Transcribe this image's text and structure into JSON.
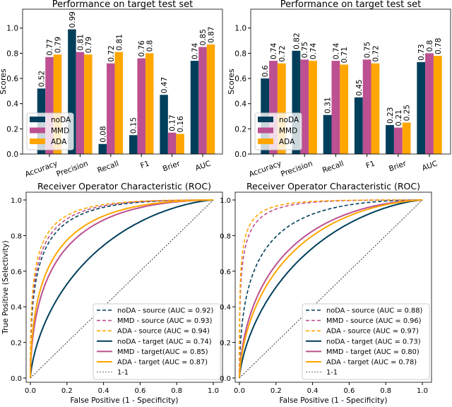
{
  "colors": {
    "noDA": "#003f5c",
    "MMD": "#bc5090",
    "ADA": "#ffa600"
  },
  "chart_data": [
    {
      "type": "bar",
      "title": "Performance on target test set",
      "ylabel": "Scores",
      "xlabel": "",
      "ylim": [
        0,
        1.15
      ],
      "yticks": [
        "0.0",
        "0.2",
        "0.4",
        "0.6",
        "0.8",
        "1.0"
      ],
      "categories": [
        "Accuracy",
        "Precision",
        "Recall",
        "F1",
        "Brier",
        "AUC"
      ],
      "legend": "lower-left",
      "series": [
        {
          "name": "noDA",
          "values": [
            0.52,
            0.99,
            0.08,
            0.15,
            0.47,
            0.74
          ],
          "labels": [
            "0.52",
            "0.99",
            "0.08",
            "0.15",
            "0.47",
            "0.74"
          ]
        },
        {
          "name": "MMD",
          "values": [
            0.77,
            0.81,
            0.72,
            0.76,
            0.17,
            0.85
          ],
          "labels": [
            "0.77",
            "0.81",
            "0.72",
            "0.76",
            "0.17",
            "0.85"
          ]
        },
        {
          "name": "ADA",
          "values": [
            0.79,
            0.79,
            0.81,
            0.8,
            0.16,
            0.87
          ],
          "labels": [
            "0.79",
            "0.79",
            "0.81",
            "0.8",
            "0.16",
            "0.87"
          ]
        }
      ]
    },
    {
      "type": "bar",
      "title": "Performance on target test set",
      "ylabel": "Scores",
      "xlabel": "",
      "ylim": [
        0,
        1.15
      ],
      "yticks": [
        "0.0",
        "0.2",
        "0.4",
        "0.6",
        "0.8",
        "1.0"
      ],
      "categories": [
        "Accuracy",
        "Precision",
        "Recall",
        "F1",
        "Brier",
        "AUC"
      ],
      "legend": "lower-left",
      "series": [
        {
          "name": "noDA",
          "values": [
            0.6,
            0.82,
            0.31,
            0.45,
            0.23,
            0.73
          ],
          "labels": [
            "0.6",
            "0.82",
            "0.31",
            "0.45",
            "0.23",
            "0.73"
          ]
        },
        {
          "name": "MMD",
          "values": [
            0.74,
            0.75,
            0.74,
            0.75,
            0.21,
            0.8
          ],
          "labels": [
            "0.74",
            "0.75",
            "0.74",
            "0.75",
            "0.21",
            "0.8"
          ]
        },
        {
          "name": "ADA",
          "values": [
            0.72,
            0.74,
            0.71,
            0.72,
            0.25,
            0.78
          ],
          "labels": [
            "0.72",
            "0.74",
            "0.71",
            "0.72",
            "0.25",
            "0.78"
          ]
        }
      ]
    },
    {
      "type": "line",
      "title": "Receiver Operator Characteristic (ROC)",
      "xlabel": "False Positive (1 - Specificity)",
      "ylabel": "True Positive (Selectivity)",
      "xlim": [
        0,
        1
      ],
      "ylim": [
        0,
        1
      ],
      "xticks": [
        "0.0",
        "0.2",
        "0.4",
        "0.6",
        "0.8",
        "1.0"
      ],
      "yticks": [
        "0.0",
        "0.2",
        "0.4",
        "0.6",
        "0.8",
        "1.0"
      ],
      "legend": "lower-right",
      "series": [
        {
          "name": "noDA - source (AUC = 0.92)",
          "model": "noDA",
          "style": "dashed",
          "auc": 0.92
        },
        {
          "name": "MMD - source (AUC = 0.93)",
          "model": "MMD",
          "style": "dashed",
          "auc": 0.93
        },
        {
          "name": "ADA - source (AUC = 0.94)",
          "model": "ADA",
          "style": "dashed",
          "auc": 0.94
        },
        {
          "name": "noDA - target (AUC = 0.74)",
          "model": "noDA",
          "style": "solid",
          "auc": 0.74
        },
        {
          "name": "MMD - target(AUC = 0.85)",
          "model": "MMD",
          "style": "solid",
          "auc": 0.85
        },
        {
          "name": "ADA - target (AUC = 0.87)",
          "model": "ADA",
          "style": "solid",
          "auc": 0.87
        },
        {
          "name": "1-1",
          "model": "chance",
          "style": "dotted",
          "auc": 0.5
        }
      ]
    },
    {
      "type": "line",
      "title": "Receiver Operator Characteristic (ROC)",
      "xlabel": "False Positive (1 - Specificity)",
      "ylabel": "",
      "xlim": [
        0,
        1
      ],
      "ylim": [
        0,
        1
      ],
      "xticks": [
        "0.0",
        "0.2",
        "0.4",
        "0.6",
        "0.8",
        "1.0"
      ],
      "yticks": [
        "0.0",
        "0.2",
        "0.4",
        "0.6",
        "0.8",
        "1.0"
      ],
      "legend": "lower-right",
      "series": [
        {
          "name": "noDA - source (AUC = 0.88)",
          "model": "noDA",
          "style": "dashed",
          "auc": 0.88
        },
        {
          "name": "MMD - source (AUC = 0.96)",
          "model": "MMD",
          "style": "dashed",
          "auc": 0.96
        },
        {
          "name": "ADA - source (AUC = 0.97)",
          "model": "ADA",
          "style": "dashed",
          "auc": 0.97
        },
        {
          "name": "noDA - target (AUC = 0.73)",
          "model": "noDA",
          "style": "solid",
          "auc": 0.73
        },
        {
          "name": "MMD - target (AUC = 0.80)",
          "model": "MMD",
          "style": "solid",
          "auc": 0.8
        },
        {
          "name": "ADA - target (AUC = 0.78)",
          "model": "ADA",
          "style": "solid",
          "auc": 0.78
        },
        {
          "name": "1-1",
          "model": "chance",
          "style": "dotted",
          "auc": 0.5
        }
      ]
    }
  ]
}
